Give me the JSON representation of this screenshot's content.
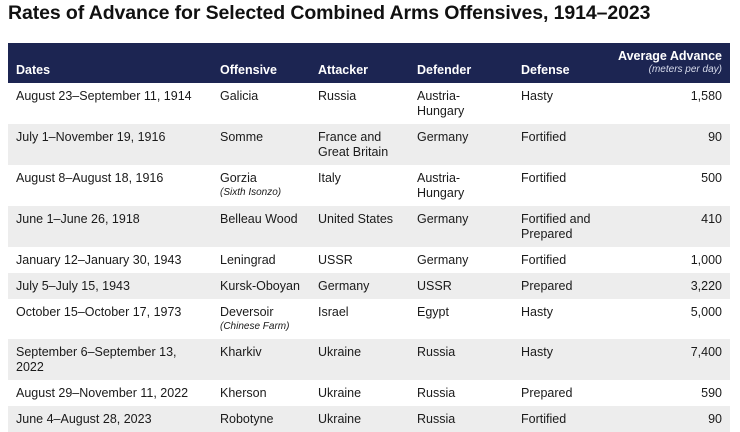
{
  "title": "Rates of Advance for Selected Combined Arms Offensives, 1914–2023",
  "table": {
    "columns": [
      "Dates",
      "Offensive",
      "Attacker",
      "Defender",
      "Defense",
      "Average Advance"
    ],
    "unit_note": "(meters per day)",
    "rows": [
      {
        "cells": [
          "August 23–September 11, 1914",
          "Galicia",
          "Russia",
          "Austria-Hungary",
          "Hasty",
          "1,580"
        ]
      },
      {
        "cells": [
          "July 1–November 19, 1916",
          "Somme",
          "France and Great Britain",
          "Germany",
          "Fortified",
          "90"
        ]
      },
      {
        "cells": [
          "August 8–August 18, 1916",
          "Gorzia",
          "Italy",
          "Austria-Hungary",
          "Fortified",
          "500"
        ],
        "note": "(Sixth Isonzo)"
      },
      {
        "cells": [
          "June 1–June 26, 1918",
          "Belleau Wood",
          "United States",
          "Germany",
          "Fortified and Prepared",
          "410"
        ]
      },
      {
        "cells": [
          "January 12–January 30, 1943",
          "Leningrad",
          "USSR",
          "Germany",
          "Fortified",
          "1,000"
        ]
      },
      {
        "cells": [
          "July 5–July 15, 1943",
          "Kursk-Oboyan",
          "Germany",
          "USSR",
          "Prepared",
          "3,220"
        ]
      },
      {
        "cells": [
          "October 15–October 17, 1973",
          "Deversoir",
          "Israel",
          "Egypt",
          "Hasty",
          "5,000"
        ],
        "note": "(Chinese Farm)"
      },
      {
        "cells": [
          "September 6–September 13, 2022",
          "Kharkiv",
          "Ukraine",
          "Russia",
          "Hasty",
          "7,400"
        ]
      },
      {
        "cells": [
          "August 29–November 11, 2022",
          "Kherson",
          "Ukraine",
          "Russia",
          "Prepared",
          "590"
        ]
      },
      {
        "cells": [
          "June 4–August 28, 2023",
          "Robotyne",
          "Ukraine",
          "Russia",
          "Fortified",
          "90"
        ]
      }
    ]
  }
}
